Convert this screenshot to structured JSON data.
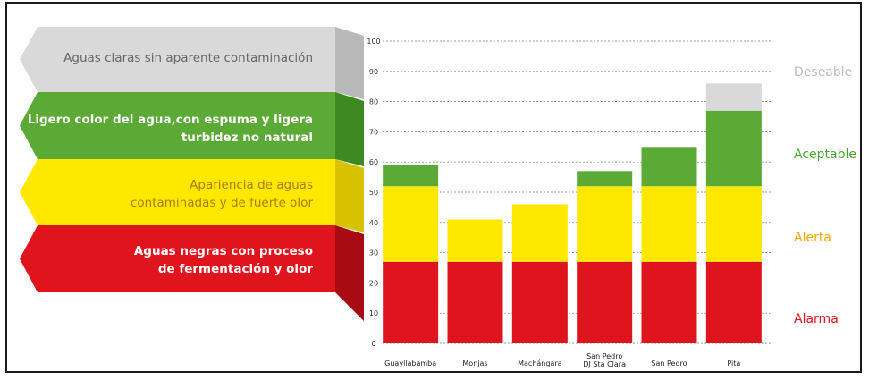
{
  "colors": {
    "gray": "#d9d9d9",
    "green": "#5aaa35",
    "yellow": "#ffe800",
    "red": "#e0141c",
    "gray_text": "#666666",
    "deseable": "#bdbdbd",
    "aceptable": "#4aa52e",
    "alerta": "#f5a800",
    "alarma": "#e0141c"
  },
  "bands": [
    {
      "lines": [
        "Aguas claras sin aparente contaminación"
      ],
      "color": "gray"
    },
    {
      "lines": [
        "Ligero color del agua,con espuma y ligera",
        "turbidez no natural"
      ],
      "color": "green"
    },
    {
      "lines": [
        "Apariencia de aguas",
        "contaminadas y de fuerte olor"
      ],
      "color": "yellow"
    },
    {
      "lines": [
        "Aguas negras con proceso",
        "de fermentación y olor"
      ],
      "color": "red"
    }
  ],
  "right_labels": [
    "Deseable",
    "Aceptable",
    "Alerta",
    "Alarma"
  ],
  "chart_data": {
    "type": "bar",
    "categories": [
      "Guayllabamba",
      "Monjas",
      "Machángara",
      "San Pedro DJ Sta Clara",
      "San Pedro",
      "Pita"
    ],
    "category_lines": [
      [
        "Guayllabamba"
      ],
      [
        "Monjas"
      ],
      [
        "Machángara"
      ],
      [
        "San Pedro",
        "DJ Sta Clara"
      ],
      [
        "San Pedro"
      ],
      [
        "Pita"
      ]
    ],
    "values": [
      59,
      41,
      46,
      57,
      65,
      86
    ],
    "thresholds": {
      "alarma": 27,
      "alerta": 52,
      "aceptable": 77
    },
    "ylim": [
      0,
      100
    ],
    "yticks": [
      0,
      10,
      20,
      30,
      40,
      50,
      60,
      70,
      80,
      90,
      100
    ],
    "grid": true,
    "title": "",
    "xlabel": "",
    "ylabel": ""
  }
}
